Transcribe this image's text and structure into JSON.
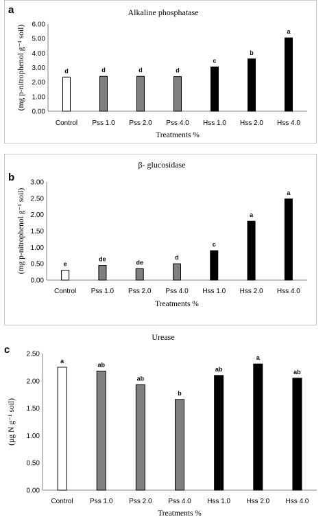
{
  "colors": {
    "control": "#ffffff",
    "pss": "#7f7f7f",
    "hss": "#000000",
    "outline": "#000000"
  },
  "chart_data": [
    {
      "type": "bar",
      "panel": "a",
      "title": "Alkaline phosphatase",
      "ylabel": "(mg p-nitrophenol g⁻¹ soil)",
      "xlabel": "Treatments %",
      "categories": [
        "Control",
        "Pss 1.0",
        "Pss 2.0",
        "Pss 4.0",
        "Hss 1.0",
        "Hss 2.0",
        "Hss 4.0"
      ],
      "values": [
        2.35,
        2.4,
        2.4,
        2.38,
        3.05,
        3.6,
        5.05
      ],
      "letters": [
        "d",
        "d",
        "d",
        "d",
        "c",
        "b",
        "a"
      ],
      "groups": [
        "control",
        "pss",
        "pss",
        "pss",
        "hss",
        "hss",
        "hss"
      ],
      "ylim": [
        0,
        6
      ],
      "yticks": [
        "0.00",
        "1.00",
        "2.00",
        "3.00",
        "4.00",
        "5.00",
        "6.00"
      ],
      "grid": false
    },
    {
      "type": "bar",
      "panel": "b",
      "title": "β-  glucosidase",
      "ylabel": "(mg p-nitrophenol g⁻¹ soil)",
      "xlabel": "Treatments %",
      "categories": [
        "Control",
        "Pss 1.0",
        "Pss 2.0",
        "Pss 4.0",
        "Hss 1.0",
        "Hss 2.0",
        "Hss 4.0"
      ],
      "values": [
        0.3,
        0.45,
        0.35,
        0.5,
        0.9,
        1.8,
        2.48
      ],
      "letters": [
        "e",
        "de",
        "de",
        "d",
        "c",
        "a",
        "a"
      ],
      "groups": [
        "control",
        "pss",
        "pss",
        "pss",
        "hss",
        "hss",
        "hss"
      ],
      "ylim": [
        0,
        3
      ],
      "yticks": [
        "0.00",
        "0.50",
        "1.00",
        "1.50",
        "2.00",
        "2.50",
        "3.00"
      ],
      "grid": false
    },
    {
      "type": "bar",
      "panel": "c",
      "title": "Urease",
      "ylabel": "(µg N g⁻¹ soil)",
      "xlabel": "Treatments %",
      "categories": [
        "Control",
        "Pss 1.0",
        "Pss 2.0",
        "Pss 4.0",
        "Hss 1.0",
        "Hss 2.0",
        "Hss 4.0"
      ],
      "values": [
        2.25,
        2.18,
        1.93,
        1.66,
        2.1,
        2.31,
        2.05
      ],
      "letters": [
        "a",
        "ab",
        "ab",
        "b",
        "ab",
        "a",
        "ab"
      ],
      "groups": [
        "control",
        "pss",
        "pss",
        "pss",
        "hss",
        "hss",
        "hss"
      ],
      "ylim": [
        0,
        2.5
      ],
      "yticks": [
        "0.00",
        "0.50",
        "1.00",
        "1.50",
        "2.00",
        "2.50"
      ],
      "grid": false
    }
  ]
}
